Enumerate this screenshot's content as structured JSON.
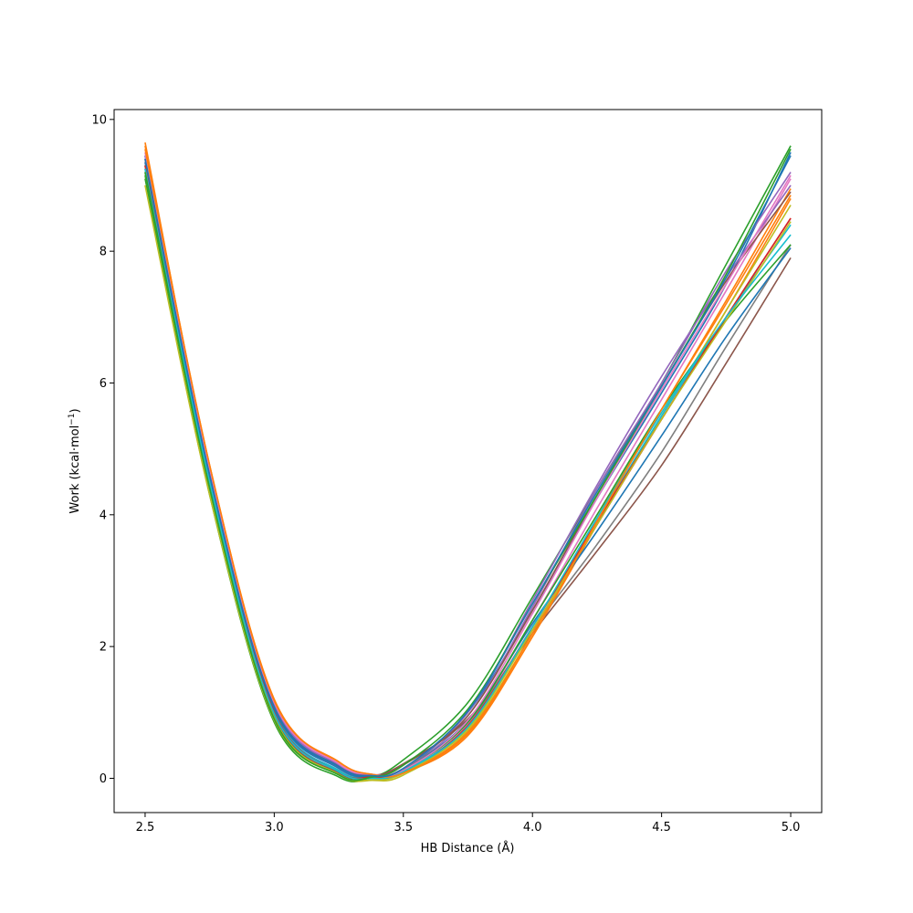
{
  "chart_data": {
    "type": "line",
    "title": "",
    "xlabel": "HB Distance (Å)",
    "ylabel_prefix": "Work (kcal·mol",
    "ylabel_sup": "−1",
    "ylabel_suffix": ")",
    "xlim": [
      2.38,
      5.12
    ],
    "ylim": [
      -0.52,
      10.15
    ],
    "xticks": [
      2.5,
      3.0,
      3.5,
      4.0,
      4.5,
      5.0
    ],
    "xtick_labels": [
      "2.5",
      "3.0",
      "3.5",
      "4.0",
      "4.5",
      "5.0"
    ],
    "yticks": [
      0,
      2,
      4,
      6,
      8,
      10
    ],
    "ytick_labels": [
      "0",
      "2",
      "4",
      "6",
      "8",
      "10"
    ],
    "grid": false,
    "legend": false,
    "series": [
      {
        "color": "#1f77b4",
        "x": [
          2.5,
          2.75,
          3.0,
          3.25,
          3.38,
          3.5,
          3.75,
          4.0,
          4.25,
          4.5,
          4.75,
          5.0
        ],
        "values": [
          9.45,
          4.6,
          1.05,
          0.17,
          0.02,
          0.12,
          1.0,
          2.55,
          4.25,
          5.85,
          7.5,
          9.5
        ]
      },
      {
        "color": "#ff7f0e",
        "x": [
          2.5,
          2.75,
          3.0,
          3.25,
          3.38,
          3.5,
          3.75,
          4.0,
          4.25,
          4.5,
          4.75,
          5.0
        ],
        "values": [
          9.6,
          4.75,
          1.2,
          0.22,
          0.05,
          0.08,
          0.65,
          2.15,
          3.85,
          5.5,
          7.1,
          8.8
        ]
      },
      {
        "color": "#2ca02c",
        "x": [
          2.5,
          2.75,
          3.0,
          3.25,
          3.38,
          3.5,
          3.75,
          4.0,
          4.25,
          4.5,
          4.75,
          5.0
        ],
        "values": [
          9.1,
          4.3,
          0.85,
          0.02,
          0.02,
          0.28,
          1.15,
          2.75,
          4.4,
          6.0,
          7.8,
          9.6
        ]
      },
      {
        "color": "#d62728",
        "x": [
          2.5,
          2.75,
          3.0,
          3.25,
          3.38,
          3.5,
          3.75,
          4.0,
          4.25,
          4.5,
          4.75,
          5.0
        ],
        "values": [
          9.3,
          4.55,
          1.0,
          0.12,
          0.02,
          0.08,
          0.78,
          2.25,
          3.85,
          5.45,
          7.0,
          8.5
        ]
      },
      {
        "color": "#9467bd",
        "x": [
          2.5,
          2.75,
          3.0,
          3.25,
          3.38,
          3.5,
          3.75,
          4.0,
          4.25,
          4.5,
          4.75,
          5.0
        ],
        "values": [
          9.4,
          4.6,
          1.1,
          0.2,
          0.05,
          0.12,
          0.95,
          2.6,
          4.4,
          6.0,
          7.7,
          9.2
        ]
      },
      {
        "color": "#8c564b",
        "x": [
          2.5,
          2.75,
          3.0,
          3.25,
          3.38,
          3.5,
          3.75,
          4.0,
          4.25,
          4.5,
          4.75,
          5.0
        ],
        "values": [
          9.2,
          4.45,
          0.95,
          0.08,
          0.03,
          0.22,
          0.9,
          2.2,
          3.45,
          4.75,
          6.3,
          7.9
        ]
      },
      {
        "color": "#e377c2",
        "x": [
          2.5,
          2.75,
          3.0,
          3.25,
          3.38,
          3.5,
          3.75,
          4.0,
          4.25,
          4.5,
          4.75,
          5.0
        ],
        "values": [
          9.35,
          4.6,
          1.05,
          0.15,
          0.03,
          0.1,
          0.82,
          2.4,
          4.1,
          5.75,
          7.4,
          9.1
        ]
      },
      {
        "color": "#7f7f7f",
        "x": [
          2.5,
          2.75,
          3.0,
          3.25,
          3.38,
          3.5,
          3.75,
          4.0,
          4.25,
          4.5,
          4.75,
          5.0
        ],
        "values": [
          9.25,
          4.5,
          1.0,
          0.1,
          0.02,
          0.15,
          0.85,
          2.25,
          3.55,
          4.95,
          6.55,
          8.1
        ]
      },
      {
        "color": "#bcbd22",
        "x": [
          2.5,
          2.75,
          3.0,
          3.25,
          3.38,
          3.5,
          3.75,
          4.0,
          4.25,
          4.5,
          4.75,
          5.0
        ],
        "values": [
          9.0,
          4.3,
          0.88,
          0.05,
          -0.03,
          0.05,
          0.72,
          2.2,
          3.9,
          5.5,
          7.1,
          8.7
        ]
      },
      {
        "color": "#17becf",
        "x": [
          2.5,
          2.75,
          3.0,
          3.25,
          3.38,
          3.5,
          3.75,
          4.0,
          4.25,
          4.5,
          4.75,
          5.0
        ],
        "values": [
          9.3,
          4.55,
          1.02,
          0.12,
          0.02,
          0.1,
          0.8,
          2.3,
          3.9,
          5.5,
          7.0,
          8.4
        ]
      },
      {
        "color": "#1f77b4",
        "x": [
          2.5,
          2.75,
          3.0,
          3.25,
          3.38,
          3.5,
          3.75,
          4.0,
          4.25,
          4.5,
          4.75,
          5.0
        ],
        "values": [
          9.35,
          4.55,
          1.05,
          0.15,
          0.03,
          0.12,
          0.88,
          2.35,
          3.75,
          5.2,
          6.7,
          8.05
        ]
      },
      {
        "color": "#ff7f0e",
        "x": [
          2.5,
          2.75,
          3.0,
          3.25,
          3.38,
          3.5,
          3.75,
          4.0,
          4.25,
          4.5,
          4.75,
          5.0
        ],
        "values": [
          9.65,
          4.7,
          1.15,
          0.25,
          0.06,
          0.1,
          0.7,
          2.2,
          3.95,
          5.6,
          7.25,
          8.95
        ]
      },
      {
        "color": "#2ca02c",
        "x": [
          2.5,
          2.75,
          3.0,
          3.25,
          3.38,
          3.5,
          3.75,
          4.0,
          4.25,
          4.5,
          4.75,
          5.0
        ],
        "values": [
          9.15,
          4.45,
          0.98,
          0.1,
          0.02,
          0.12,
          0.85,
          2.4,
          4.0,
          5.6,
          6.95,
          8.1
        ]
      },
      {
        "color": "#d62728",
        "x": [
          2.5,
          2.75,
          3.0,
          3.25,
          3.38,
          3.5,
          3.75,
          4.0,
          4.25,
          4.5,
          4.75,
          5.0
        ],
        "values": [
          9.3,
          4.55,
          1.0,
          0.1,
          0.02,
          0.08,
          0.8,
          2.3,
          3.9,
          5.45,
          7.0,
          8.5
        ]
      },
      {
        "color": "#9467bd",
        "x": [
          2.5,
          2.75,
          3.0,
          3.25,
          3.38,
          3.5,
          3.75,
          4.0,
          4.25,
          4.5,
          4.75,
          5.0
        ],
        "values": [
          9.45,
          4.65,
          1.12,
          0.2,
          0.05,
          0.15,
          1.0,
          2.7,
          4.45,
          6.1,
          7.6,
          9.0
        ]
      },
      {
        "color": "#8c564b",
        "x": [
          2.5,
          2.75,
          3.0,
          3.25,
          3.38,
          3.5,
          3.75,
          4.0,
          4.25,
          4.5,
          4.75,
          5.0
        ],
        "values": [
          9.4,
          4.6,
          1.08,
          0.18,
          0.05,
          0.2,
          0.95,
          2.55,
          4.3,
          5.95,
          7.55,
          8.9
        ]
      },
      {
        "color": "#e377c2",
        "x": [
          2.5,
          2.75,
          3.0,
          3.25,
          3.38,
          3.5,
          3.75,
          4.0,
          4.25,
          4.5,
          4.75,
          5.0
        ],
        "values": [
          9.5,
          4.7,
          1.15,
          0.22,
          0.06,
          0.12,
          0.88,
          2.5,
          4.25,
          5.9,
          7.5,
          9.15
        ]
      },
      {
        "color": "#bcbd22",
        "x": [
          2.5,
          2.75,
          3.0,
          3.25,
          3.38,
          3.5,
          3.75,
          4.0,
          4.25,
          4.5,
          4.75,
          5.0
        ],
        "values": [
          9.2,
          4.4,
          0.92,
          0.06,
          -0.02,
          0.08,
          0.75,
          2.25,
          3.85,
          5.45,
          6.95,
          8.45
        ]
      },
      {
        "color": "#17becf",
        "x": [
          2.5,
          2.75,
          3.0,
          3.25,
          3.38,
          3.5,
          3.75,
          4.0,
          4.25,
          4.5,
          4.75,
          5.0
        ],
        "values": [
          9.25,
          4.5,
          0.98,
          0.1,
          0.0,
          0.1,
          0.78,
          2.3,
          3.95,
          5.55,
          7.0,
          8.25
        ]
      },
      {
        "color": "#ff7f0e",
        "x": [
          2.5,
          2.75,
          3.0,
          3.25,
          3.38,
          3.5,
          3.75,
          4.0,
          4.25,
          4.5,
          4.75,
          5.0
        ],
        "values": [
          9.55,
          4.75,
          1.18,
          0.25,
          0.06,
          0.08,
          0.68,
          2.15,
          3.9,
          5.6,
          7.2,
          8.85
        ]
      },
      {
        "color": "#2ca02c",
        "x": [
          2.5,
          2.75,
          3.0,
          3.25,
          3.38,
          3.5,
          3.75,
          4.0,
          4.25,
          4.5,
          4.75,
          5.0
        ],
        "values": [
          9.2,
          4.4,
          0.9,
          0.05,
          0.02,
          0.2,
          1.05,
          2.65,
          4.3,
          5.95,
          7.65,
          9.55
        ]
      },
      {
        "color": "#1f77b4",
        "x": [
          2.5,
          2.75,
          3.0,
          3.25,
          3.38,
          3.5,
          3.75,
          4.0,
          4.25,
          4.5,
          4.75,
          5.0
        ],
        "values": [
          9.4,
          4.6,
          1.08,
          0.18,
          0.04,
          0.15,
          1.02,
          2.65,
          4.35,
          5.95,
          7.6,
          9.45
        ]
      }
    ]
  }
}
